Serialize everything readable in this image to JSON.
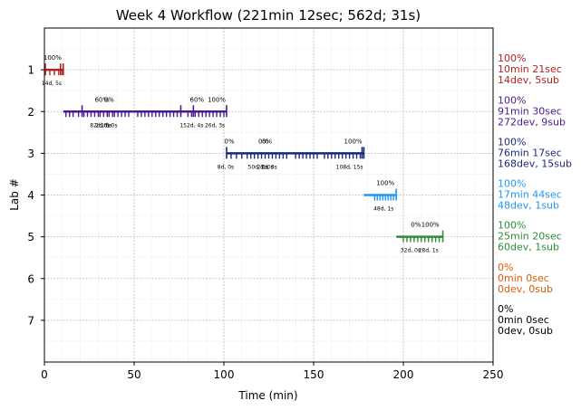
{
  "chart_data": {
    "type": "timeline",
    "title": "Week 4 Workflow (221min 12sec; 562d; 31s)",
    "xlabel": "Time (min)",
    "ylabel": "Lab #",
    "xlim": [
      0,
      250
    ],
    "ylim": [
      8,
      0
    ],
    "x_ticks": [
      0,
      50,
      100,
      150,
      200,
      250
    ],
    "y_ticks": [
      1,
      2,
      3,
      4,
      5,
      6,
      7
    ],
    "grid": true,
    "labs": [
      {
        "lab": 1,
        "color": "#b22222",
        "start": 0.5,
        "end": 10.5,
        "devs": [
          0.5,
          3.0,
          5.5,
          8.0,
          10.0
        ],
        "subs": [
          0.5,
          9.0,
          10.5
        ],
        "pct_labels": [
          {
            "x": 4.5,
            "text": "100%"
          }
        ],
        "count_labels": [
          {
            "x": 4.0,
            "text": "14d, 5s"
          }
        ],
        "summary": [
          "100%",
          "10min 21sec",
          "14dev, 5sub"
        ]
      },
      {
        "lab": 2,
        "color": "#4b1a8c",
        "start": 10.5,
        "end": 101.5,
        "devs": [
          12,
          14,
          16,
          19,
          22,
          24,
          26,
          28,
          30,
          31,
          33,
          35,
          36,
          38,
          39,
          41,
          43,
          45,
          47,
          52,
          54,
          56,
          58,
          60,
          62,
          64,
          66,
          68,
          70,
          72,
          74,
          80,
          82,
          84,
          86,
          88,
          90,
          92,
          94,
          96,
          98,
          100
        ],
        "subs": [
          21,
          76,
          83,
          101.5
        ],
        "pct_labels": [
          {
            "x": 32,
            "text": "60%"
          },
          {
            "x": 36,
            "text": "0%"
          },
          {
            "x": 85,
            "text": "60%"
          },
          {
            "x": 96,
            "text": "100%"
          }
        ],
        "count_labels": [
          {
            "x": 31,
            "text": "82d, 0s"
          },
          {
            "x": 33,
            "text": "2d, 0s"
          },
          {
            "x": 36,
            "text": "1d, 0s"
          },
          {
            "x": 82,
            "text": "152d, 4s"
          },
          {
            "x": 95,
            "text": "26d, 3s"
          }
        ],
        "summary": [
          "100%",
          "91min 30sec",
          "272dev, 9sub"
        ]
      },
      {
        "lab": 3,
        "color": "#1a2a7a",
        "start": 101.5,
        "end": 178,
        "devs": [
          104,
          107,
          110,
          113,
          115,
          117,
          119,
          121,
          123,
          125,
          127,
          129,
          131,
          133,
          135,
          140,
          142,
          144,
          146,
          148,
          150,
          152,
          156,
          158,
          160,
          162,
          164,
          166,
          168,
          170,
          172,
          174,
          176
        ],
        "subs": [
          101.5,
          177,
          178
        ],
        "pct_labels": [
          {
            "x": 103,
            "text": "0%"
          },
          {
            "x": 122,
            "text": "0%"
          },
          {
            "x": 124,
            "text": "0%"
          },
          {
            "x": 172,
            "text": "100%"
          }
        ],
        "count_labels": [
          {
            "x": 101,
            "text": "8d, 0s"
          },
          {
            "x": 119,
            "text": "50d, 0s"
          },
          {
            "x": 123,
            "text": "2d, 0s"
          },
          {
            "x": 125,
            "text": "1d, 0s"
          },
          {
            "x": 170,
            "text": "108d, 15s"
          }
        ],
        "summary": [
          "100%",
          "76min 17sec",
          "168dev, 15sub"
        ]
      },
      {
        "lab": 4,
        "color": "#2196f3",
        "start": 178,
        "end": 196,
        "devs": [
          184,
          185.5,
          187,
          188.5,
          190,
          191.5,
          193,
          194.5
        ],
        "subs": [
          196
        ],
        "pct_labels": [
          {
            "x": 190,
            "text": "100%"
          }
        ],
        "count_labels": [
          {
            "x": 189,
            "text": "48d, 1s"
          }
        ],
        "summary": [
          "100%",
          "17min 44sec",
          "48dev, 1sub"
        ]
      },
      {
        "lab": 5,
        "color": "#2e8b3a",
        "start": 196,
        "end": 222,
        "devs": [
          200,
          202,
          204,
          206,
          208,
          210,
          212,
          214,
          216,
          218,
          220
        ],
        "subs": [
          222
        ],
        "pct_labels": [
          {
            "x": 207,
            "text": "0%"
          },
          {
            "x": 215,
            "text": "100%"
          }
        ],
        "count_labels": [
          {
            "x": 204,
            "text": "32d, 0s"
          },
          {
            "x": 214,
            "text": "28d, 1s"
          }
        ],
        "summary": [
          "100%",
          "25min 20sec",
          "60dev, 1sub"
        ]
      },
      {
        "lab": 6,
        "color": "#e05a00",
        "start": null,
        "end": null,
        "devs": [],
        "subs": [],
        "pct_labels": [],
        "count_labels": [],
        "summary": [
          "0%",
          "0min 0sec",
          "0dev, 0sub"
        ]
      },
      {
        "lab": 7,
        "color": "#000000",
        "start": null,
        "end": null,
        "devs": [],
        "subs": [],
        "pct_labels": [],
        "count_labels": [],
        "summary": [
          "0%",
          "0min 0sec",
          "0dev, 0sub"
        ]
      }
    ]
  }
}
